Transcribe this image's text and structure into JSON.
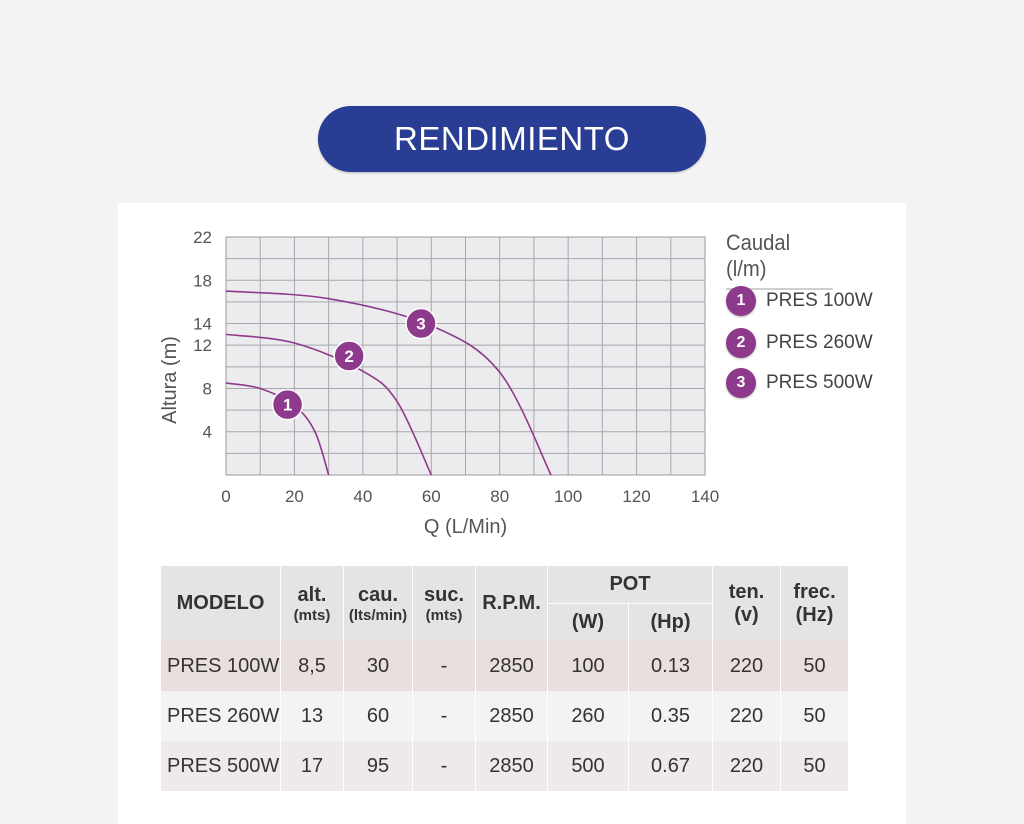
{
  "header": {
    "title": "RENDIMIENTO"
  },
  "legend": {
    "title": "Caudal (l/m)",
    "items": [
      {
        "number": "1",
        "label": "PRES 100W"
      },
      {
        "number": "2",
        "label": "PRES 260W"
      },
      {
        "number": "3",
        "label": "PRES 500W"
      }
    ]
  },
  "colors": {
    "pill": "#283d93",
    "curve": "#8e3a8c",
    "grid_bg": "#ececee",
    "grid_line": "#a8a8ac"
  },
  "chart_data": {
    "type": "line",
    "xlabel": "Q (L/Min)",
    "ylabel": "Altura (m)",
    "xlim": [
      0,
      140
    ],
    "ylim": [
      0,
      22
    ],
    "xticks": [
      0,
      20,
      40,
      60,
      80,
      100,
      120,
      140
    ],
    "yticks": [
      4,
      8,
      12,
      14,
      18,
      22
    ],
    "grid": true,
    "legend_position": "right",
    "series": [
      {
        "name": "PRES 100W",
        "label": "1",
        "x": [
          0,
          10,
          20,
          26,
          30
        ],
        "y": [
          8.5,
          8.0,
          6.4,
          4.0,
          0
        ],
        "marker": [
          18,
          6.5
        ]
      },
      {
        "name": "PRES 260W",
        "label": "2",
        "x": [
          0,
          20,
          40,
          50,
          60
        ],
        "y": [
          13,
          12.2,
          9.6,
          6.8,
          0
        ],
        "marker": [
          36,
          11.0
        ]
      },
      {
        "name": "PRES 500W",
        "label": "3",
        "x": [
          0,
          30,
          60,
          80,
          95
        ],
        "y": [
          17,
          16.3,
          13.8,
          9.5,
          0
        ],
        "marker": [
          57,
          14.0
        ]
      }
    ]
  },
  "table": {
    "headers": {
      "modelo": "MODELO",
      "alt": "alt.",
      "alt_unit": "(mts)",
      "cau": "cau.",
      "cau_unit": "(lts/min)",
      "suc": "suc.",
      "suc_unit": "(mts)",
      "rpm": "R.P.M.",
      "pot": "POT",
      "pot_w": "(W)",
      "pot_hp": "(Hp)",
      "ten": "ten.",
      "ten_unit": "(v)",
      "frec": "frec.",
      "frec_unit": "(Hz)"
    },
    "rows": [
      {
        "modelo": "PRES 100W",
        "alt": "8,5",
        "cau": "30",
        "suc": "-",
        "rpm": "2850",
        "w": "100",
        "hp": "0.13",
        "ten": "220",
        "frec": "50"
      },
      {
        "modelo": "PRES 260W",
        "alt": "13",
        "cau": "60",
        "suc": "-",
        "rpm": "2850",
        "w": "260",
        "hp": "0.35",
        "ten": "220",
        "frec": "50"
      },
      {
        "modelo": "PRES 500W",
        "alt": "17",
        "cau": "95",
        "suc": "-",
        "rpm": "2850",
        "w": "500",
        "hp": "0.67",
        "ten": "220",
        "frec": "50"
      }
    ]
  }
}
